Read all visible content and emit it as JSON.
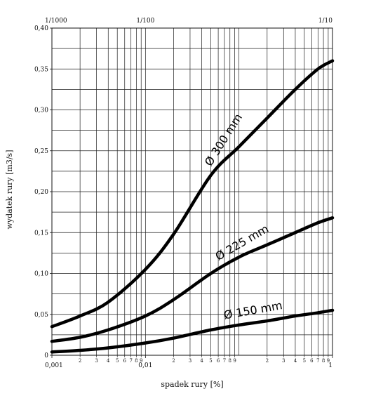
{
  "chart_data": {
    "type": "line",
    "x_scale": "log",
    "xlim": [
      0.001,
      1
    ],
    "ylim": [
      0,
      0.4
    ],
    "grid": true,
    "xlabel": "spadek rury [%]",
    "ylabel": "wydatek rury [m3/s]",
    "y_ticks": [
      "0",
      "0,05",
      "0,10",
      "0,15",
      "0,20",
      "0,25",
      "0,30",
      "0,35",
      "0,40"
    ],
    "x_major_ticks": [
      "0,001",
      "0,01",
      "1"
    ],
    "x_minor_ticks": [
      "2",
      "3",
      "4",
      "5",
      "6",
      "7",
      "8",
      "9"
    ],
    "top_ticks": [
      "1/1000",
      "1/100",
      "1/10"
    ],
    "series": [
      {
        "name": "Ø 300 mm",
        "x": [
          0.001,
          0.002,
          0.004,
          0.01,
          0.02,
          0.05,
          0.1,
          0.2,
          0.4,
          0.7,
          1
        ],
        "y": [
          0.035,
          0.048,
          0.065,
          0.105,
          0.148,
          0.22,
          0.255,
          0.29,
          0.325,
          0.35,
          0.36
        ]
      },
      {
        "name": "Ø 225 mm",
        "x": [
          0.001,
          0.002,
          0.004,
          0.01,
          0.02,
          0.05,
          0.1,
          0.2,
          0.4,
          0.7,
          1
        ],
        "y": [
          0.017,
          0.022,
          0.031,
          0.048,
          0.068,
          0.1,
          0.12,
          0.135,
          0.15,
          0.162,
          0.168
        ]
      },
      {
        "name": "Ø 150 mm",
        "x": [
          0.001,
          0.002,
          0.004,
          0.01,
          0.02,
          0.05,
          0.1,
          0.2,
          0.4,
          0.7,
          1
        ],
        "y": [
          0.004,
          0.006,
          0.009,
          0.015,
          0.021,
          0.031,
          0.037,
          0.042,
          0.048,
          0.052,
          0.055
        ]
      }
    ]
  }
}
